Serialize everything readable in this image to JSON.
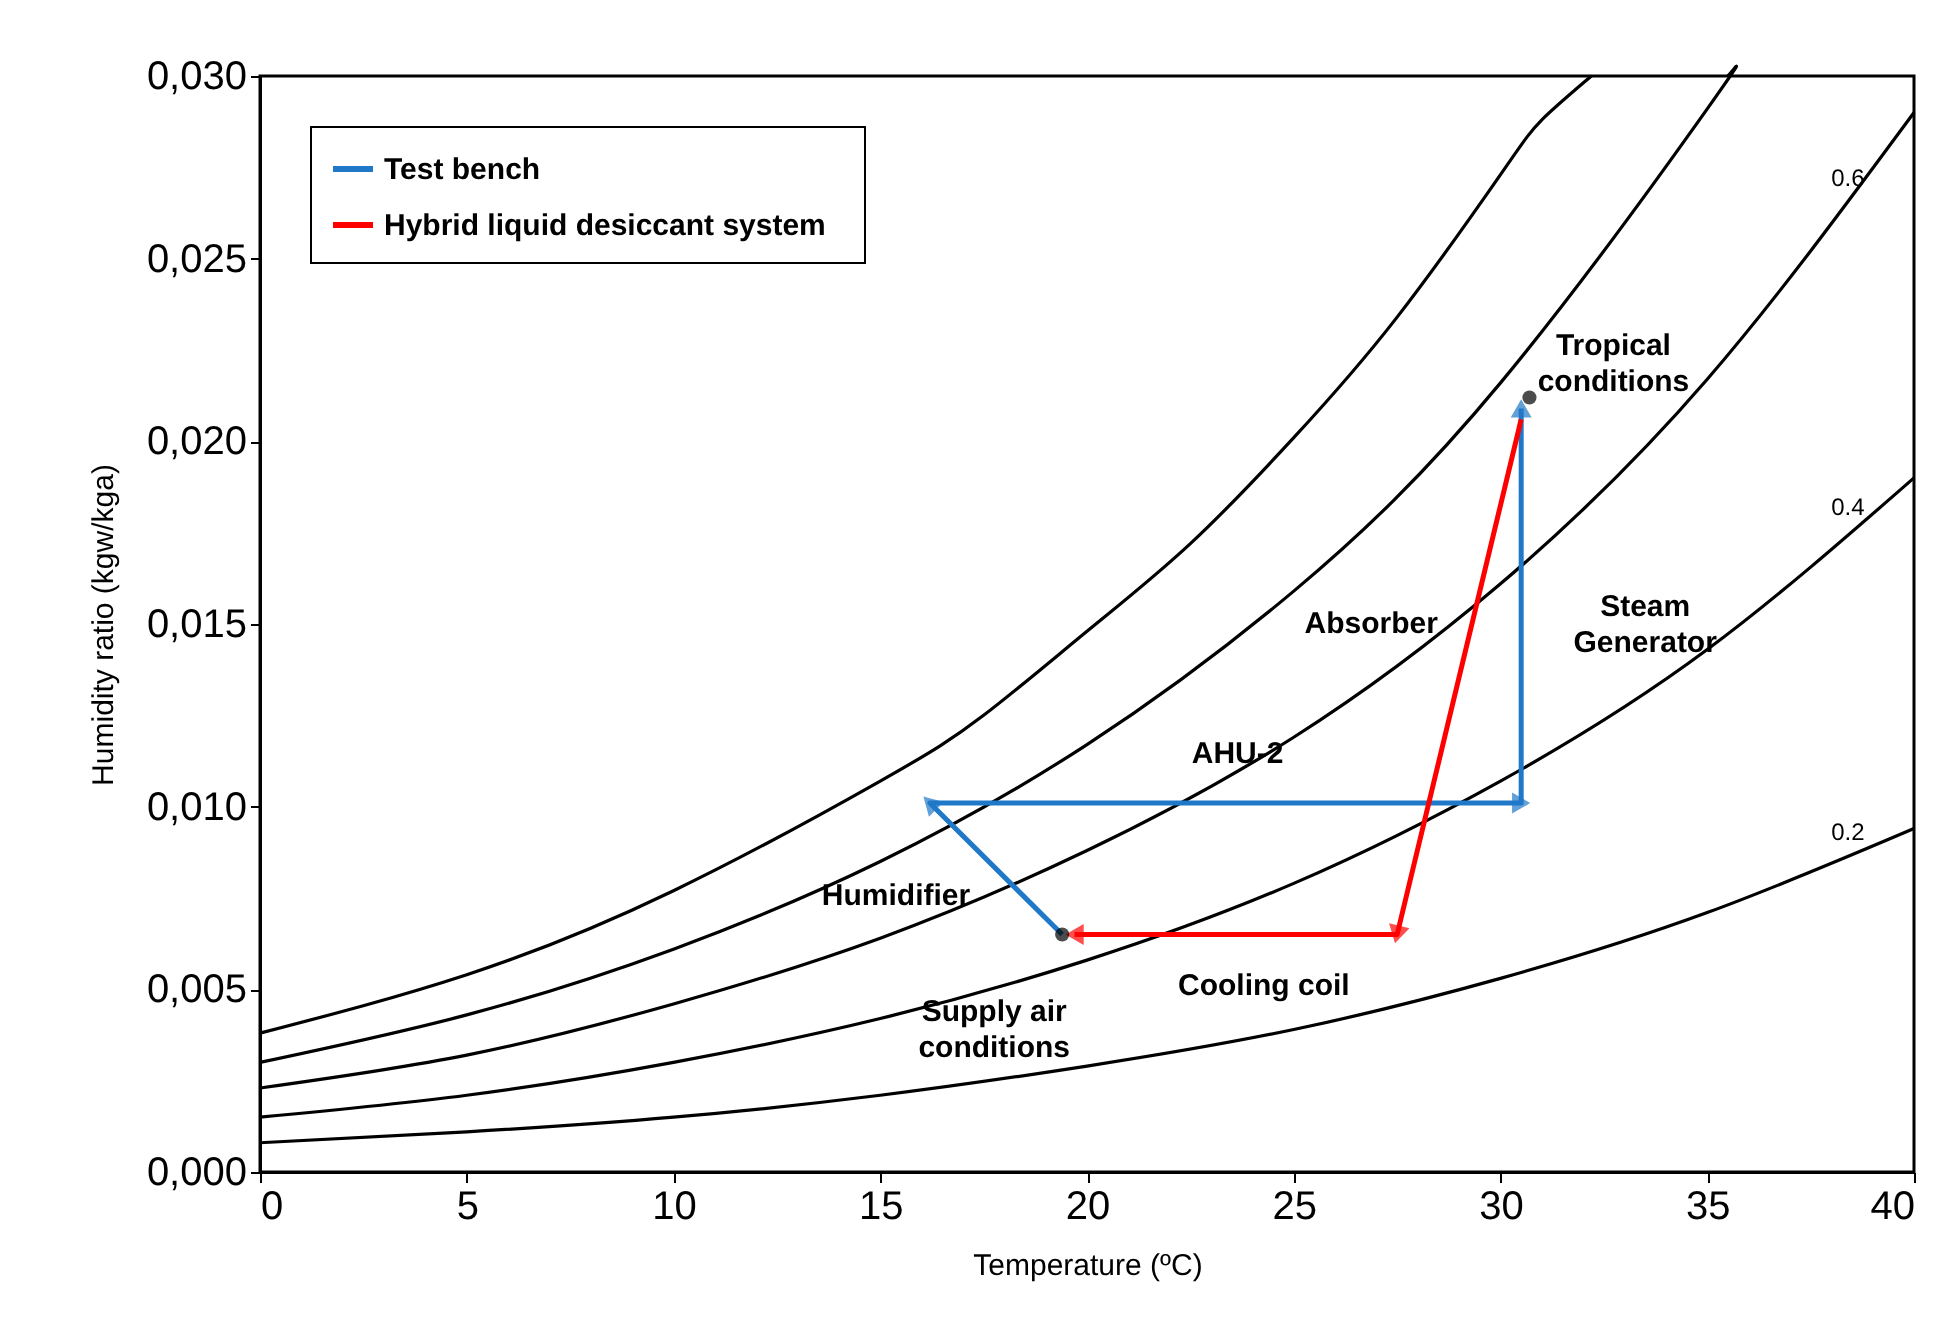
{
  "chart_data": {
    "type": "line",
    "xlabel": "Temperature (ºC)",
    "ylabel": "Humidity ratio (kgw/kga)",
    "xlim": [
      0,
      40
    ],
    "xticks": [
      0,
      5,
      10,
      15,
      20,
      25,
      30,
      35,
      40
    ],
    "ylim": [
      0,
      0.03
    ],
    "yticks": [
      {
        "value": 0,
        "label": "0,000"
      },
      {
        "value": 0.005,
        "label": "0,005"
      },
      {
        "value": 0.01,
        "label": "0,010"
      },
      {
        "value": 0.015,
        "label": "0,015"
      },
      {
        "value": 0.02,
        "label": "0,020"
      },
      {
        "value": 0.025,
        "label": "0,025"
      },
      {
        "value": 0.03,
        "label": "0,030"
      }
    ],
    "grid": false,
    "legend": "top left",
    "line_style": "solid",
    "series": [
      {
        "color": "#000000",
        "x": [
          0,
          5,
          10,
          15,
          17.5,
          20,
          22.5,
          25,
          27.5,
          30,
          31,
          32.2
        ],
        "values": [
          0.0038,
          0.0054,
          0.0077,
          0.0107,
          0.0125,
          0.0148,
          0.0172,
          0.0201,
          0.0234,
          0.0273,
          0.0288,
          0.03
        ]
      },
      {
        "color": "#000000",
        "x": [
          0,
          5,
          10,
          15,
          20,
          25,
          30,
          35,
          35.5
        ],
        "values": [
          0.003,
          0.0043,
          0.0061,
          0.0085,
          0.0117,
          0.0159,
          0.0216,
          0.0291,
          0.03
        ]
      },
      {
        "color": "#000000",
        "x": [
          0,
          5,
          10,
          15,
          20,
          25,
          30,
          35,
          40
        ],
        "values": [
          0.0023,
          0.0032,
          0.0046,
          0.0064,
          0.0088,
          0.0119,
          0.0161,
          0.0217,
          0.029
        ]
      },
      {
        "color": "#000000",
        "x": [
          0,
          5,
          10,
          15,
          20,
          25,
          30,
          35,
          40
        ],
        "values": [
          0.0015,
          0.0021,
          0.003,
          0.0042,
          0.0058,
          0.0079,
          0.0107,
          0.0143,
          0.019
        ]
      },
      {
        "color": "#000000",
        "x": [
          0,
          5,
          10,
          15,
          20,
          25,
          30,
          35,
          40
        ],
        "values": [
          0.0008,
          0.0011,
          0.0015,
          0.0021,
          0.0029,
          0.0039,
          0.0053,
          0.0071,
          0.0094
        ]
      },
      {
        "name": "Test bench",
        "color": "#1f78c8",
        "x": [
          19.4,
          16.2,
          30.5,
          30.5
        ],
        "values": [
          0.0065,
          0.0101,
          0.0101,
          0.0209
        ]
      },
      {
        "name": "Hybrid  liquid  desiccant system",
        "color": "#ff0000",
        "x": [
          30.5,
          27.5,
          19.7
        ],
        "values": [
          0.0206,
          0.0065,
          0.0065
        ]
      },
      {
        "type": "scatter",
        "marker": "circle",
        "color": "#000000",
        "x": [
          30.7,
          19.4
        ],
        "values": [
          0.0212,
          0.0065
        ]
      }
    ],
    "annotations": [
      {
        "text": "Tropical\nconditions",
        "x": 30.7,
        "y": 0.0212
      },
      {
        "text": "Supply  air\nconditions",
        "x": 19.4,
        "y": 0.0065
      },
      {
        "text": "Steam\nGenerator",
        "x": 30.5,
        "y": 0.0155
      },
      {
        "text": "Absorber",
        "x": 29.0,
        "y": 0.0136
      },
      {
        "text": "AHU-2",
        "x": 23.4,
        "y": 0.0101
      },
      {
        "text": "Humidifier",
        "x": 17.8,
        "y": 0.0083
      },
      {
        "text": "Cooling  coil",
        "x": 23.6,
        "y": 0.0065
      },
      {
        "text": "0.6",
        "x": 38.4,
        "y": 0.0266
      },
      {
        "text": "0.4",
        "x": 38.4,
        "y": 0.0176
      },
      {
        "text": "0.2",
        "x": 38.4,
        "y": 0.0087
      }
    ]
  }
}
